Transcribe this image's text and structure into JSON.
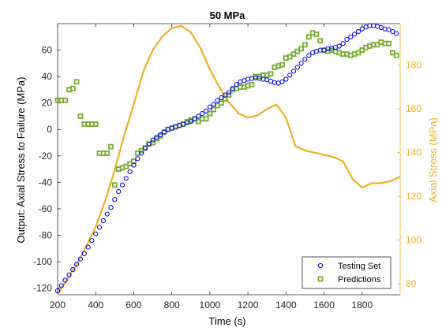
{
  "chart_data": {
    "type": "scatter",
    "title": "50 MPa",
    "xlabel": "Time (s)",
    "ylabel_left": "Output: Axial Stress to Failure (MPa)",
    "ylabel_right": "Axial Stress (MPa)",
    "xlim": [
      200,
      2000
    ],
    "ylim_left": [
      -125,
      80
    ],
    "ylim_right": [
      75,
      199
    ],
    "x_ticks": [
      200,
      400,
      600,
      800,
      1000,
      1200,
      1400,
      1600,
      1800
    ],
    "y_ticks_left": [
      -120,
      -100,
      -80,
      -60,
      -40,
      -20,
      0,
      20,
      40,
      60
    ],
    "y_ticks_right": [
      80,
      100,
      120,
      140,
      160,
      180
    ],
    "grid": false,
    "legend_position": "bottom-right",
    "colors": {
      "testing": "#0000ff",
      "predictions": "#77ac30",
      "axial": "#edb120",
      "axis": "#262626",
      "right_axis": "#edb120"
    },
    "series": [
      {
        "name": "Testing Set",
        "axis": "left",
        "marker": "circle",
        "x": [
          200,
          220,
          240,
          260,
          280,
          300,
          320,
          340,
          360,
          380,
          400,
          420,
          440,
          460,
          480,
          500,
          520,
          540,
          560,
          580,
          600,
          620,
          640,
          660,
          680,
          700,
          720,
          740,
          760,
          780,
          800,
          820,
          840,
          860,
          880,
          900,
          920,
          940,
          960,
          980,
          1000,
          1020,
          1040,
          1060,
          1080,
          1100,
          1120,
          1140,
          1160,
          1180,
          1200,
          1220,
          1240,
          1260,
          1280,
          1300,
          1320,
          1340,
          1360,
          1380,
          1400,
          1420,
          1440,
          1460,
          1480,
          1500,
          1520,
          1540,
          1560,
          1580,
          1600,
          1620,
          1640,
          1660,
          1680,
          1700,
          1720,
          1740,
          1760,
          1780,
          1800,
          1820,
          1840,
          1860,
          1880,
          1900,
          1920,
          1940,
          1960,
          1980
        ],
        "y": [
          -122,
          -118,
          -114,
          -110,
          -106,
          -102,
          -98,
          -94,
          -89,
          -84,
          -79,
          -74,
          -69,
          -64,
          -59,
          -53,
          -47,
          -42,
          -37,
          -32,
          -27,
          -22,
          -18,
          -14,
          -11,
          -8,
          -6,
          -4,
          -2,
          0,
          1,
          2,
          3,
          4,
          5,
          6,
          8,
          10,
          12,
          14,
          17,
          19,
          22,
          24,
          26,
          28,
          31,
          34,
          36,
          37,
          38,
          38.5,
          39,
          38.5,
          38,
          37.5,
          36.5,
          35.5,
          35,
          36,
          38,
          41,
          44,
          47,
          50,
          53,
          56,
          58,
          59,
          60,
          60,
          61,
          61.5,
          62,
          63,
          65,
          68,
          70,
          72,
          74,
          76,
          77.5,
          78.5,
          78.5,
          78,
          77,
          76,
          75.5,
          74,
          72.5
        ]
      },
      {
        "name": "Predictions",
        "axis": "left",
        "marker": "square",
        "x": [
          200,
          220,
          240,
          260,
          280,
          300,
          320,
          340,
          360,
          380,
          400,
          420,
          440,
          460,
          480,
          500,
          520,
          540,
          560,
          580,
          600,
          620,
          640,
          660,
          680,
          700,
          720,
          740,
          760,
          780,
          800,
          820,
          840,
          860,
          880,
          900,
          920,
          940,
          960,
          980,
          1000,
          1020,
          1040,
          1060,
          1080,
          1100,
          1120,
          1140,
          1160,
          1180,
          1200,
          1220,
          1240,
          1260,
          1280,
          1300,
          1320,
          1340,
          1360,
          1380,
          1400,
          1420,
          1440,
          1460,
          1480,
          1500,
          1520,
          1540,
          1560,
          1580,
          1600,
          1620,
          1640,
          1660,
          1680,
          1700,
          1720,
          1740,
          1760,
          1780,
          1800,
          1820,
          1840,
          1860,
          1880,
          1900,
          1920,
          1940,
          1960,
          1980
        ],
        "y": [
          22,
          22,
          22,
          30,
          31,
          36,
          10,
          4,
          4,
          4,
          4,
          -18,
          -18,
          -18,
          -13,
          -42,
          -30,
          -29,
          -28,
          -26,
          -24,
          -18,
          -16,
          -14,
          -11,
          -10,
          -7,
          -5,
          -2,
          0,
          1,
          2,
          3,
          4,
          6,
          7,
          8,
          6,
          8,
          8,
          12,
          15,
          18,
          20,
          23,
          26,
          30,
          31,
          32,
          32,
          33,
          34,
          40,
          40,
          41,
          41,
          42,
          47,
          48,
          49,
          54,
          55,
          57,
          59,
          61,
          64,
          70,
          73,
          72,
          67,
          60,
          59,
          60,
          59,
          58,
          57,
          57,
          56,
          57,
          58,
          60,
          62,
          63,
          64,
          64,
          66,
          65,
          65,
          58,
          56
        ]
      },
      {
        "name": "",
        "axis": "right",
        "marker": "line",
        "x": [
          200,
          250,
          300,
          350,
          400,
          450,
          500,
          550,
          600,
          650,
          700,
          750,
          800,
          850,
          900,
          950,
          1000,
          1050,
          1100,
          1150,
          1200,
          1250,
          1300,
          1350,
          1400,
          1450,
          1500,
          1550,
          1600,
          1650,
          1700,
          1750,
          1800,
          1850,
          1900,
          1950,
          2000
        ],
        "y": [
          75,
          82,
          89,
          97,
          106,
          118,
          132,
          148,
          162,
          177,
          187,
          193,
          197,
          198,
          195,
          188,
          178,
          170,
          163,
          158,
          156,
          157,
          160,
          162,
          156,
          143,
          141,
          140,
          139,
          138,
          136,
          128,
          124,
          126,
          126,
          127,
          129
        ]
      }
    ]
  }
}
